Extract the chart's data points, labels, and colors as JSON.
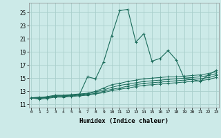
{
  "xlabel": "Humidex (Indice chaleur)",
  "bg_color": "#cceae8",
  "grid_color": "#aacfcc",
  "line_color": "#1a6b5a",
  "x_ticks": [
    0,
    1,
    2,
    3,
    4,
    5,
    6,
    7,
    8,
    9,
    10,
    11,
    12,
    13,
    14,
    15,
    16,
    17,
    18,
    19,
    20,
    21,
    22,
    23
  ],
  "y_ticks": [
    11,
    13,
    15,
    17,
    19,
    21,
    23,
    25
  ],
  "xlim": [
    -0.3,
    23.3
  ],
  "ylim": [
    10.5,
    26.5
  ],
  "series": [
    [
      12.0,
      12.1,
      12.0,
      12.3,
      12.3,
      12.4,
      12.5,
      15.2,
      14.9,
      17.5,
      21.5,
      25.3,
      25.5,
      20.5,
      21.8,
      17.6,
      18.0,
      19.2,
      17.8,
      15.0,
      14.8,
      14.5,
      15.5,
      16.2
    ],
    [
      12.0,
      12.0,
      12.2,
      12.4,
      12.4,
      12.5,
      12.6,
      12.7,
      13.0,
      13.5,
      14.0,
      14.2,
      14.5,
      14.7,
      14.9,
      15.0,
      15.1,
      15.2,
      15.2,
      15.3,
      15.4,
      15.5,
      15.7,
      16.0
    ],
    [
      12.0,
      12.0,
      12.1,
      12.3,
      12.3,
      12.4,
      12.5,
      12.6,
      12.9,
      13.2,
      13.6,
      13.9,
      14.1,
      14.3,
      14.5,
      14.6,
      14.7,
      14.8,
      14.9,
      15.0,
      15.1,
      15.2,
      15.4,
      15.7
    ],
    [
      12.0,
      11.9,
      12.0,
      12.2,
      12.2,
      12.3,
      12.4,
      12.5,
      12.7,
      13.0,
      13.3,
      13.5,
      13.8,
      14.0,
      14.2,
      14.3,
      14.4,
      14.5,
      14.6,
      14.7,
      14.8,
      14.9,
      15.1,
      15.4
    ],
    [
      12.0,
      11.8,
      11.9,
      12.1,
      12.1,
      12.2,
      12.3,
      12.4,
      12.6,
      12.8,
      13.1,
      13.3,
      13.5,
      13.7,
      13.9,
      14.0,
      14.1,
      14.2,
      14.3,
      14.4,
      14.5,
      14.6,
      14.8,
      15.1
    ]
  ]
}
